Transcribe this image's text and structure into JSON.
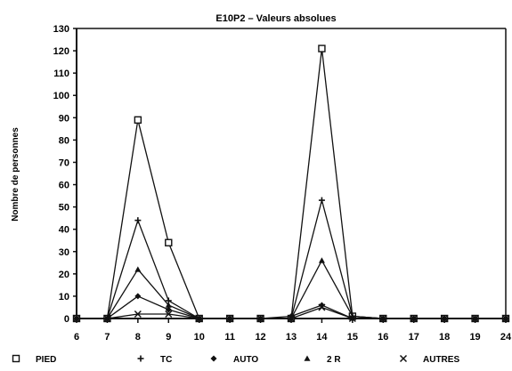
{
  "chart_data": {
    "type": "line",
    "title": "E10P2  –  Valeurs absolues",
    "xlabel": "",
    "ylabel": "Nombre de personnes",
    "xlim": [
      6,
      24
    ],
    "ylim": [
      0,
      130
    ],
    "x_ticks": [
      6,
      7,
      8,
      9,
      10,
      11,
      12,
      13,
      14,
      15,
      16,
      17,
      18,
      19,
      24
    ],
    "y_ticks": [
      0,
      10,
      20,
      30,
      40,
      50,
      60,
      70,
      80,
      90,
      100,
      110,
      120,
      130
    ],
    "grid": false,
    "legend_position": "bottom",
    "x": [
      6,
      7,
      8,
      9,
      10,
      11,
      12,
      13,
      14,
      15,
      16,
      17,
      18,
      19,
      24
    ],
    "series": [
      {
        "name": "PIED",
        "marker": "square",
        "values": [
          0,
          0,
          89,
          34,
          0,
          0,
          0,
          0,
          121,
          1,
          0,
          0,
          0,
          0,
          0
        ]
      },
      {
        "name": "TC",
        "marker": "plus",
        "values": [
          0,
          0,
          44,
          8,
          0,
          0,
          0,
          0,
          53,
          1,
          0,
          0,
          0,
          0,
          0
        ]
      },
      {
        "name": "AUTO",
        "marker": "diamond",
        "values": [
          0,
          0,
          10,
          4,
          0,
          0,
          0,
          1,
          6,
          0,
          0,
          0,
          0,
          0,
          0
        ]
      },
      {
        "name": "2 R",
        "marker": "triangle",
        "values": [
          0,
          0,
          22,
          6,
          0,
          0,
          0,
          0,
          26,
          1,
          0,
          0,
          0,
          0,
          0
        ]
      },
      {
        "name": "AUTRES",
        "marker": "cross",
        "values": [
          0,
          0,
          2,
          2,
          0,
          0,
          0,
          0,
          5,
          0,
          0,
          0,
          0,
          0,
          0
        ]
      }
    ]
  }
}
